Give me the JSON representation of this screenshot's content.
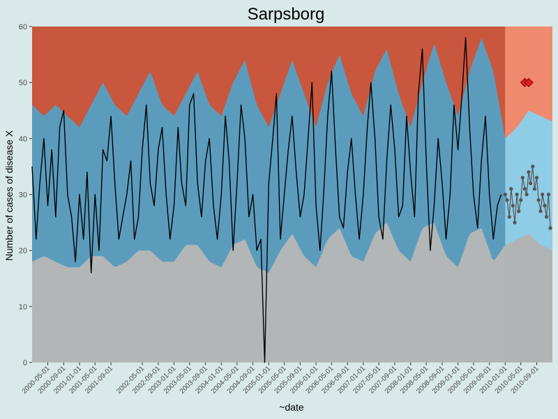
{
  "chart_data": {
    "type": "area",
    "title": "Sarpsborg",
    "xlabel": "~date",
    "ylabel": "Number of cases of disease X",
    "ylim": [
      0,
      60
    ],
    "yticks": [
      0,
      10,
      20,
      30,
      40,
      50,
      60
    ],
    "xlim": [
      "2000-01-01",
      "2010-12-31"
    ],
    "xticks": [
      "2000-05-01",
      "2000-09-01",
      "2001-01-01",
      "2001-05-01",
      "2001-09-01",
      "2002-05-01",
      "2002-09-01",
      "2003-01-01",
      "2003-05-01",
      "2003-09-01",
      "2004-01-01",
      "2004-05-01",
      "2004-09-01",
      "2005-01-01",
      "2005-05-01",
      "2005-09-01",
      "2006-01-01",
      "2006-05-01",
      "2006-09-01",
      "2007-01-01",
      "2007-05-01",
      "2007-09-01",
      "2008-01-01",
      "2008-05-01",
      "2008-09-01",
      "2009-01-01",
      "2009-05-01",
      "2009-09-01",
      "2010-01-01",
      "2010-05-01",
      "2010-09-01"
    ],
    "baseline_end": "2010-01-01",
    "colors": {
      "background": "#d9e8e8",
      "low_zone": "#b2b6b6",
      "normal_zone": "#5b9cbd",
      "high_zone": "#c8573e",
      "prediction_low_zone": "#b0b4b4",
      "prediction_normal_zone": "#8fcce6",
      "prediction_high_zone": "#f08a6e",
      "line": "#000000",
      "prediction_points": "#555555",
      "outbreak_marker": "#e02020"
    },
    "series": [
      {
        "role": "observed",
        "x": [
          "2000-01-01",
          "2000-02-01",
          "2000-03-01",
          "2000-04-01",
          "2000-05-01",
          "2000-06-01",
          "2000-07-01",
          "2000-08-01",
          "2000-09-01",
          "2000-10-01",
          "2000-11-01",
          "2000-12-01",
          "2001-01-01",
          "2001-02-01",
          "2001-03-01",
          "2001-04-01",
          "2001-05-01",
          "2001-06-01",
          "2001-07-01",
          "2001-08-01",
          "2001-09-01",
          "2001-10-01",
          "2001-11-01",
          "2001-12-01",
          "2002-01-01",
          "2002-02-01",
          "2002-03-01",
          "2002-04-01",
          "2002-05-01",
          "2002-06-01",
          "2002-07-01",
          "2002-08-01",
          "2002-09-01",
          "2002-10-01",
          "2002-11-01",
          "2002-12-01",
          "2003-01-01",
          "2003-02-01",
          "2003-03-01",
          "2003-04-01",
          "2003-05-01",
          "2003-06-01",
          "2003-07-01",
          "2003-08-01",
          "2003-09-01",
          "2003-10-01",
          "2003-11-01",
          "2003-12-01",
          "2004-01-01",
          "2004-02-01",
          "2004-03-01",
          "2004-04-01",
          "2004-05-01",
          "2004-06-01",
          "2004-07-01",
          "2004-08-01",
          "2004-09-01",
          "2004-10-01",
          "2004-11-01",
          "2004-12-01",
          "2005-01-01",
          "2005-02-01",
          "2005-03-01",
          "2005-04-01",
          "2005-05-01",
          "2005-06-01",
          "2005-07-01",
          "2005-08-01",
          "2005-09-01",
          "2005-10-01",
          "2005-11-01",
          "2005-12-01",
          "2006-01-01",
          "2006-02-01",
          "2006-03-01",
          "2006-04-01",
          "2006-05-01",
          "2006-06-01",
          "2006-07-01",
          "2006-08-01",
          "2006-09-01",
          "2006-10-01",
          "2006-11-01",
          "2006-12-01",
          "2007-01-01",
          "2007-02-01",
          "2007-03-01",
          "2007-04-01",
          "2007-05-01",
          "2007-06-01",
          "2007-07-01",
          "2007-08-01",
          "2007-09-01",
          "2007-10-01",
          "2007-11-01",
          "2007-12-01",
          "2008-01-01",
          "2008-02-01",
          "2008-03-01",
          "2008-04-01",
          "2008-05-01",
          "2008-06-01",
          "2008-07-01",
          "2008-08-01",
          "2008-09-01",
          "2008-10-01",
          "2008-11-01",
          "2008-12-01",
          "2009-01-01",
          "2009-02-01",
          "2009-03-01",
          "2009-04-01",
          "2009-05-01",
          "2009-06-01",
          "2009-07-01",
          "2009-08-01",
          "2009-09-01",
          "2009-10-01",
          "2009-11-01",
          "2009-12-01"
        ],
        "values": [
          35,
          22,
          32,
          40,
          28,
          38,
          26,
          42,
          45,
          30,
          26,
          18,
          30,
          22,
          34,
          16,
          30,
          20,
          38,
          36,
          44,
          32,
          22,
          26,
          30,
          36,
          22,
          26,
          38,
          46,
          32,
          28,
          38,
          42,
          30,
          22,
          28,
          42,
          32,
          28,
          46,
          48,
          32,
          26,
          36,
          40,
          28,
          22,
          30,
          44,
          36,
          20,
          32,
          46,
          40,
          26,
          30,
          20,
          22,
          0,
          32,
          40,
          48,
          22,
          30,
          38,
          44,
          34,
          26,
          30,
          40,
          50,
          28,
          20,
          30,
          44,
          52,
          38,
          26,
          24,
          34,
          40,
          30,
          22,
          30,
          42,
          50,
          40,
          26,
          22,
          36,
          46,
          38,
          26,
          28,
          44,
          34,
          26,
          48,
          56,
          36,
          20,
          28,
          40,
          32,
          22,
          30,
          46,
          38,
          48,
          58,
          42,
          30,
          24,
          36,
          44,
          30,
          22,
          28,
          30
        ]
      },
      {
        "role": "expected_low",
        "x": [
          "2000-01-01",
          "2000-04-01",
          "2000-07-01",
          "2000-10-01",
          "2001-01-01",
          "2001-04-01",
          "2001-07-01",
          "2001-10-01",
          "2002-01-01",
          "2002-04-01",
          "2002-07-01",
          "2002-10-01",
          "2003-01-01",
          "2003-04-01",
          "2003-07-01",
          "2003-10-01",
          "2004-01-01",
          "2004-04-01",
          "2004-07-01",
          "2004-10-01",
          "2005-01-01",
          "2005-04-01",
          "2005-07-01",
          "2005-10-01",
          "2006-01-01",
          "2006-04-01",
          "2006-07-01",
          "2006-10-01",
          "2007-01-01",
          "2007-04-01",
          "2007-07-01",
          "2007-10-01",
          "2008-01-01",
          "2008-04-01",
          "2008-07-01",
          "2008-10-01",
          "2009-01-01",
          "2009-04-01",
          "2009-07-01",
          "2009-10-01",
          "2010-01-01",
          "2010-04-01",
          "2010-07-01",
          "2010-10-01",
          "2010-12-31"
        ],
        "values": [
          18,
          19,
          18,
          17,
          17,
          19,
          19,
          17,
          18,
          20,
          20,
          18,
          18,
          21,
          21,
          18,
          17,
          21,
          22,
          17,
          16,
          20,
          23,
          19,
          17,
          22,
          24,
          19,
          18,
          23,
          25,
          20,
          18,
          24,
          25,
          19,
          17,
          23,
          24,
          18,
          21,
          22,
          23,
          21,
          20
        ]
      },
      {
        "role": "expected_high",
        "x": [
          "2000-01-01",
          "2000-04-01",
          "2000-07-01",
          "2000-10-01",
          "2001-01-01",
          "2001-04-01",
          "2001-07-01",
          "2001-10-01",
          "2002-01-01",
          "2002-04-01",
          "2002-07-01",
          "2002-10-01",
          "2003-01-01",
          "2003-04-01",
          "2003-07-01",
          "2003-10-01",
          "2004-01-01",
          "2004-04-01",
          "2004-07-01",
          "2004-10-01",
          "2005-01-01",
          "2005-04-01",
          "2005-07-01",
          "2005-10-01",
          "2006-01-01",
          "2006-04-01",
          "2006-07-01",
          "2006-10-01",
          "2007-01-01",
          "2007-04-01",
          "2007-07-01",
          "2007-10-01",
          "2008-01-01",
          "2008-04-01",
          "2008-07-01",
          "2008-10-01",
          "2009-01-01",
          "2009-04-01",
          "2009-07-01",
          "2009-10-01",
          "2010-01-01",
          "2010-04-01",
          "2010-07-01",
          "2010-10-01",
          "2010-12-31"
        ],
        "values": [
          46,
          44,
          46,
          44,
          42,
          46,
          50,
          46,
          44,
          48,
          52,
          46,
          44,
          48,
          52,
          46,
          44,
          50,
          54,
          46,
          42,
          48,
          54,
          48,
          42,
          50,
          55,
          48,
          44,
          52,
          56,
          48,
          42,
          50,
          57,
          50,
          44,
          52,
          58,
          52,
          40,
          42,
          45,
          44,
          43
        ]
      },
      {
        "role": "prediction",
        "x": [
          "2010-01-01",
          "2010-01-15",
          "2010-02-01",
          "2010-02-15",
          "2010-03-01",
          "2010-03-15",
          "2010-04-01",
          "2010-04-15",
          "2010-05-01",
          "2010-05-15",
          "2010-06-01",
          "2010-06-15",
          "2010-07-01",
          "2010-07-15",
          "2010-08-01",
          "2010-08-15",
          "2010-09-01",
          "2010-09-15",
          "2010-10-01",
          "2010-10-15",
          "2010-11-01",
          "2010-11-15",
          "2010-12-01",
          "2010-12-15"
        ],
        "values": [
          30,
          29,
          26,
          31,
          28,
          25,
          30,
          27,
          29,
          33,
          31,
          30,
          34,
          32,
          35,
          31,
          33,
          29,
          27,
          30,
          28,
          26,
          30,
          24
        ]
      },
      {
        "role": "outbreak",
        "x": [
          "2010-06-01",
          "2010-07-01"
        ],
        "values": [
          50,
          50
        ]
      }
    ]
  }
}
